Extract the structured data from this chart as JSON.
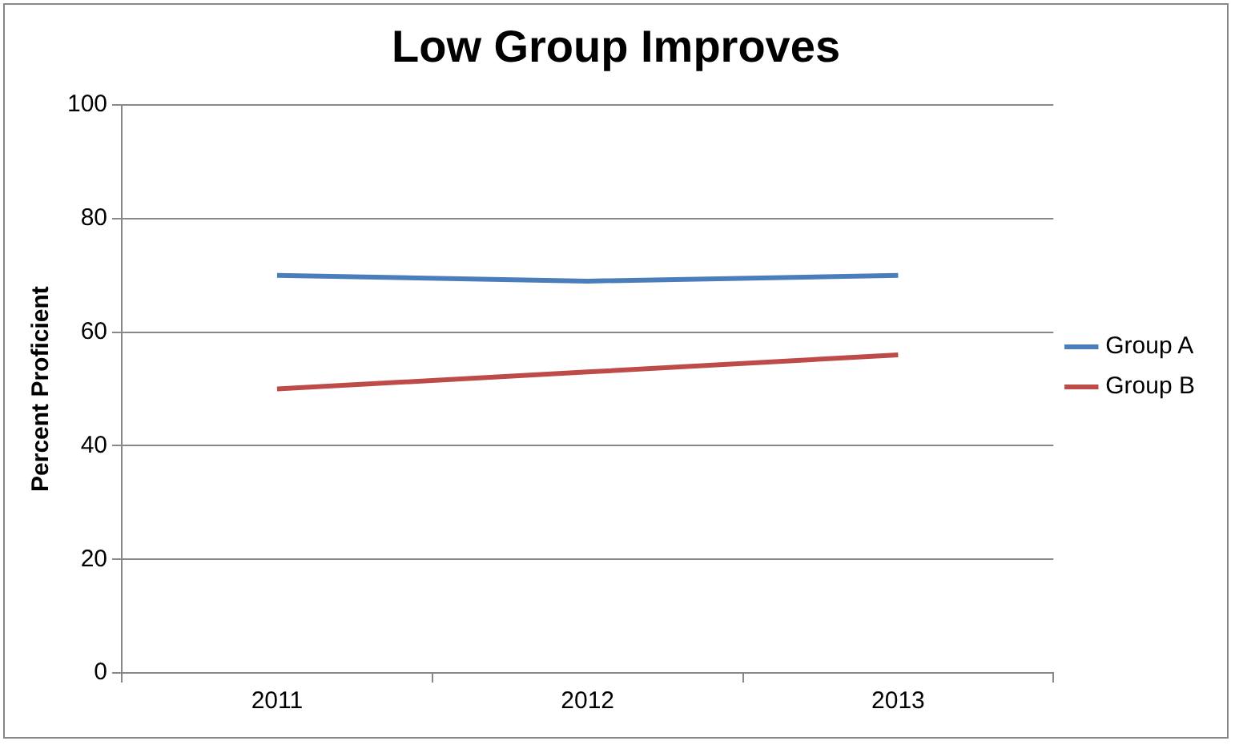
{
  "chart_data": {
    "type": "line",
    "title": "Low Group Improves",
    "ylabel": "Percent Proficient",
    "categories": [
      "2011",
      "2012",
      "2013"
    ],
    "series": [
      {
        "name": "Group A",
        "color": "#4a7ebb",
        "values": [
          70,
          69,
          70
        ]
      },
      {
        "name": "Group B",
        "color": "#be4b48",
        "values": [
          50,
          53,
          56
        ]
      }
    ],
    "ylim": [
      0,
      100
    ],
    "yticks": [
      0,
      20,
      40,
      60,
      80,
      100
    ],
    "grid": "y",
    "legend": "right",
    "marker": "none",
    "line_style": "solid"
  }
}
